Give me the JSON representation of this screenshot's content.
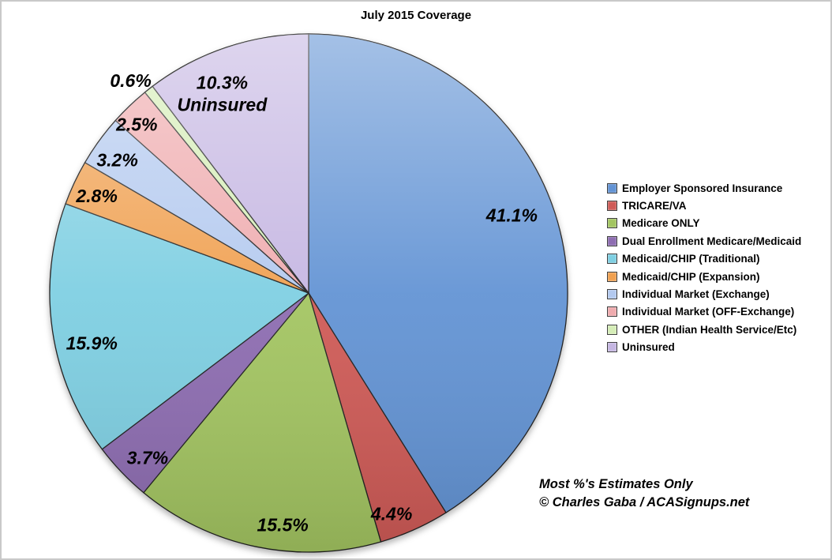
{
  "title": "July 2015 Coverage",
  "credit": {
    "line1": "Most %'s Estimates Only",
    "line2": "© Charles Gaba / ACASignups.net"
  },
  "chart_data": {
    "type": "pie",
    "title": "July 2015 Coverage",
    "start_angle": "12 o'clock",
    "direction": "clockwise",
    "legend_position": "right",
    "values_unit": "percent of population",
    "total": 100.0,
    "slices": [
      {
        "label": "Employer Sponsored Insurance",
        "value": 41.1,
        "display": "41.1%",
        "color": "#6293d4"
      },
      {
        "label": "TRICARE/VA",
        "value": 4.4,
        "display": "4.4%",
        "color": "#cf5a56"
      },
      {
        "label": "Medicare ONLY",
        "value": 15.5,
        "display": "15.5%",
        "color": "#a3c561"
      },
      {
        "label": "Dual Enrollment Medicare/Medicaid",
        "value": 3.7,
        "display": "3.7%",
        "color": "#8d6cb1"
      },
      {
        "label": "Medicaid/CHIP (Traditional)",
        "value": 15.9,
        "display": "15.9%",
        "color": "#7ecfe2"
      },
      {
        "label": "Medicaid/CHIP (Expansion)",
        "value": 2.8,
        "display": "2.8%",
        "color": "#f0a050"
      },
      {
        "label": "Individual Market (Exchange)",
        "value": 3.2,
        "display": "3.2%",
        "color": "#b3c9ef"
      },
      {
        "label": "Individual Market (OFF-Exchange)",
        "value": 2.5,
        "display": "2.5%",
        "color": "#efabae"
      },
      {
        "label": "OTHER (Indian Health Service/Etc)",
        "value": 0.6,
        "display": "0.6%",
        "color": "#d5edb7"
      },
      {
        "label": "Uninsured",
        "value": 10.3,
        "display": "10.3%",
        "sublabel": "Uninsured",
        "color": "#c5b6e2"
      }
    ]
  }
}
